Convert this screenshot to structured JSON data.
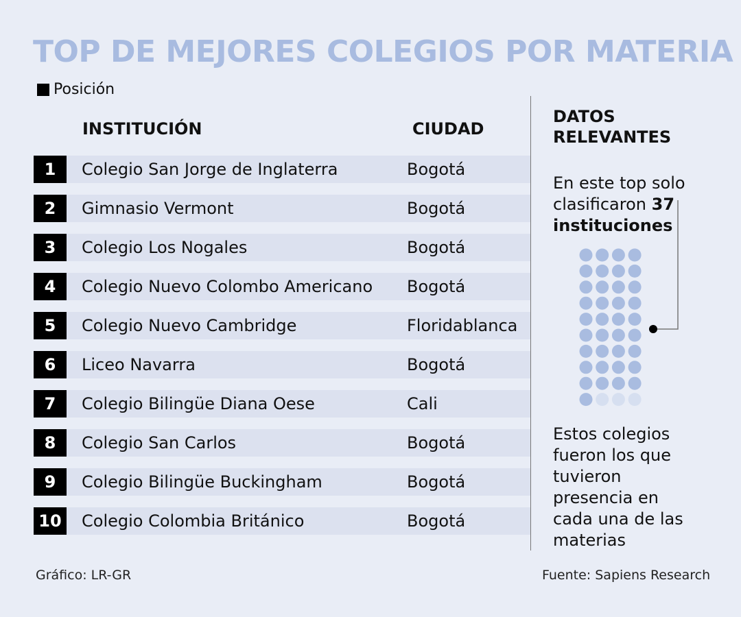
{
  "title": "TOP DE MEJORES COLEGIOS POR MATERIA",
  "legend": "Posición",
  "headers": {
    "institution": "INSTITUCIÓN",
    "city": "CIUDAD"
  },
  "chart_data": {
    "type": "table",
    "title": "TOP DE MEJORES COLEGIOS POR MATERIA",
    "columns": [
      "Posición",
      "INSTITUCIÓN",
      "CIUDAD"
    ],
    "rows": [
      {
        "pos": "1",
        "institution": "Colegio San Jorge de Inglaterra",
        "city": "Bogotá"
      },
      {
        "pos": "2",
        "institution": "Gimnasio Vermont",
        "city": "Bogotá"
      },
      {
        "pos": "3",
        "institution": "Colegio Los Nogales",
        "city": "Bogotá"
      },
      {
        "pos": "4",
        "institution": "Colegio Nuevo Colombo Americano",
        "city": "Bogotá"
      },
      {
        "pos": "5",
        "institution": "Colegio Nuevo Cambridge",
        "city": "Floridablanca"
      },
      {
        "pos": "6",
        "institution": "Liceo Navarra",
        "city": "Bogotá"
      },
      {
        "pos": "7",
        "institution": "Colegio Bilingüe Diana Oese",
        "city": "Cali"
      },
      {
        "pos": "8",
        "institution": "Colegio San Carlos",
        "city": "Bogotá"
      },
      {
        "pos": "9",
        "institution": "Colegio Bilingüe Buckingham",
        "city": "Bogotá"
      },
      {
        "pos": "10",
        "institution": "Colegio Colombia Británico",
        "city": "Bogotá"
      }
    ],
    "dot_chart": {
      "filled": 37,
      "total": 40,
      "columns": 4
    }
  },
  "side": {
    "title_line1": "DATOS",
    "title_line2": "RELEVANTES",
    "text1_a": "En este top solo",
    "text1_b": "clasificaron ",
    "text1_num": "37",
    "text1_c": "instituciones",
    "text2": [
      "Estos colegios",
      "fueron los que",
      "tuvieron",
      "presencia en",
      "cada una de las",
      "materias"
    ]
  },
  "colors": {
    "title": "#a8bbe0",
    "dot_filled": "#a9bce0",
    "dot_empty": "#d6dff0",
    "row_bg": "#dce1ef"
  },
  "footer": {
    "left": "Gráfico: LR-GR",
    "right": "Fuente: Sapiens Research"
  }
}
